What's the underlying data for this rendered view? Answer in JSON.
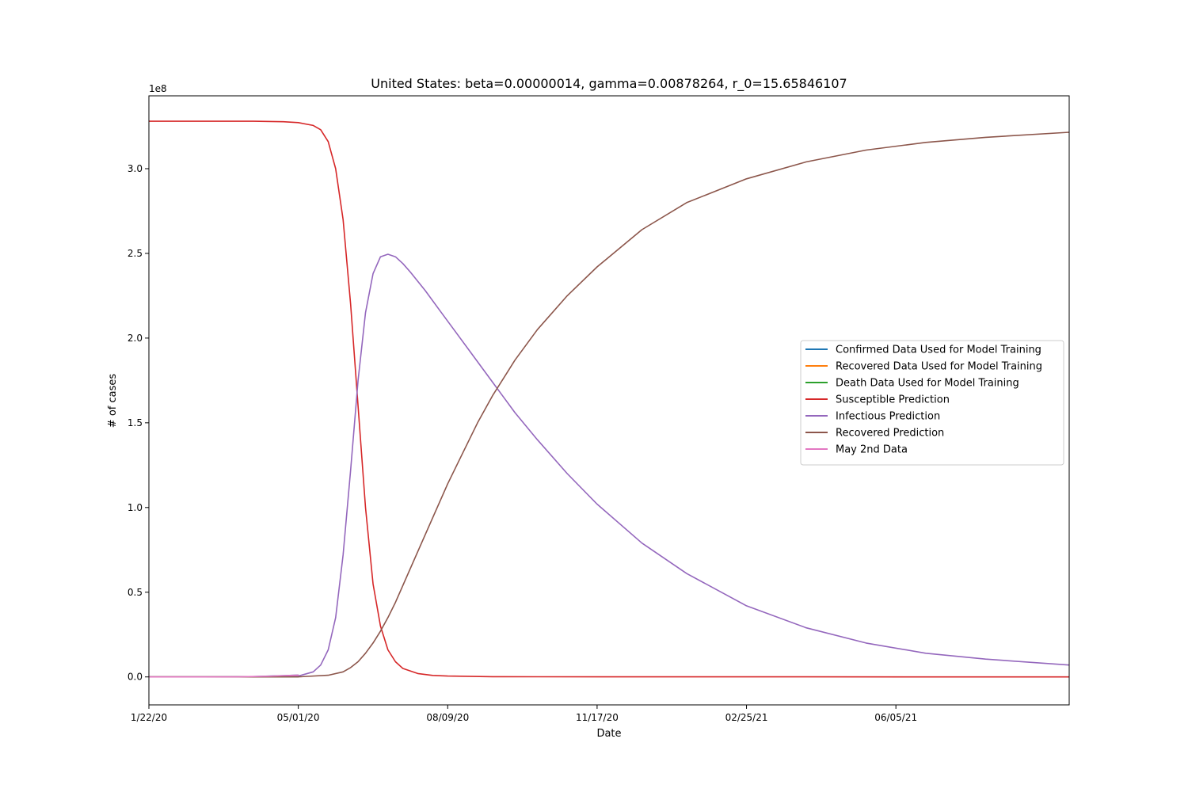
{
  "chart_data": {
    "type": "line",
    "title": "United States: beta=0.00000014, gamma=0.00878264, r_0=15.65846107",
    "xlabel": "Date",
    "ylabel": "# of cases",
    "y_offset_label": "1e8",
    "xlim": [
      "2020-01-22",
      "2021-09-29"
    ],
    "ylim": [
      -0.165,
      3.43
    ],
    "y_unit": "1e8 cases",
    "x_ticks": [
      {
        "value": "2020-01-22",
        "label": "1/22/20"
      },
      {
        "value": "2020-05-01",
        "label": "05/01/20"
      },
      {
        "value": "2020-08-09",
        "label": "08/09/20"
      },
      {
        "value": "2020-11-17",
        "label": "11/17/20"
      },
      {
        "value": "2021-02-25",
        "label": "02/25/21"
      },
      {
        "value": "2021-06-05",
        "label": "06/05/21"
      }
    ],
    "y_ticks": [
      {
        "value": 0.0,
        "label": "0.0"
      },
      {
        "value": 0.5,
        "label": "0.5"
      },
      {
        "value": 1.0,
        "label": "1.0"
      },
      {
        "value": 1.5,
        "label": "1.5"
      },
      {
        "value": 2.0,
        "label": "2.0"
      },
      {
        "value": 2.5,
        "label": "2.5"
      },
      {
        "value": 3.0,
        "label": "3.0"
      }
    ],
    "grid": false,
    "legend_position": "center-right",
    "series": [
      {
        "name": "Confirmed Data Used for Model Training",
        "color": "#1f77b4",
        "x": [
          "2020-01-22",
          "2020-03-01",
          "2020-04-01",
          "2020-05-01"
        ],
        "y": [
          0.0,
          0.0,
          0.002,
          0.011
        ]
      },
      {
        "name": "Recovered Data Used for Model Training",
        "color": "#ff7f0e",
        "x": [
          "2020-01-22",
          "2020-03-01",
          "2020-04-01",
          "2020-05-01"
        ],
        "y": [
          0.0,
          0.0,
          0.0,
          0.002
        ]
      },
      {
        "name": "Death Data Used for Model Training",
        "color": "#2ca02c",
        "x": [
          "2020-01-22",
          "2020-03-01",
          "2020-04-01",
          "2020-05-01"
        ],
        "y": [
          0.0,
          0.0,
          0.0,
          0.0007
        ]
      },
      {
        "name": "Susceptible Prediction",
        "color": "#d62728",
        "x": [
          "2020-01-22",
          "2020-04-01",
          "2020-04-21",
          "2020-05-01",
          "2020-05-11",
          "2020-05-16",
          "2020-05-21",
          "2020-05-26",
          "2020-05-31",
          "2020-06-05",
          "2020-06-10",
          "2020-06-15",
          "2020-06-20",
          "2020-06-25",
          "2020-06-30",
          "2020-07-05",
          "2020-07-10",
          "2020-07-20",
          "2020-07-30",
          "2020-08-09",
          "2020-09-08",
          "2020-10-08",
          "2021-01-06",
          "2021-04-06",
          "2021-07-05",
          "2021-09-29"
        ],
        "y": [
          3.28,
          3.28,
          3.277,
          3.272,
          3.255,
          3.23,
          3.16,
          3.0,
          2.7,
          2.2,
          1.6,
          1.0,
          0.55,
          0.3,
          0.16,
          0.09,
          0.05,
          0.02,
          0.009,
          0.005,
          0.0015,
          0.0008,
          0.0004,
          0.0003,
          0.0002,
          0.0002
        ]
      },
      {
        "name": "Infectious Prediction",
        "color": "#9467bd",
        "x": [
          "2020-01-22",
          "2020-04-01",
          "2020-05-01",
          "2020-05-11",
          "2020-05-16",
          "2020-05-21",
          "2020-05-26",
          "2020-05-31",
          "2020-06-05",
          "2020-06-10",
          "2020-06-15",
          "2020-06-20",
          "2020-06-25",
          "2020-06-30",
          "2020-07-05",
          "2020-07-10",
          "2020-07-15",
          "2020-07-25",
          "2020-08-04",
          "2020-08-14",
          "2020-08-24",
          "2020-09-08",
          "2020-09-23",
          "2020-10-08",
          "2020-10-28",
          "2020-11-17",
          "2020-12-17",
          "2021-01-16",
          "2021-02-25",
          "2021-04-06",
          "2021-05-16",
          "2021-06-25",
          "2021-08-04",
          "2021-09-29"
        ],
        "y": [
          0.0,
          0.0,
          0.005,
          0.03,
          0.07,
          0.16,
          0.35,
          0.72,
          1.22,
          1.75,
          2.15,
          2.38,
          2.48,
          2.495,
          2.48,
          2.44,
          2.39,
          2.28,
          2.16,
          2.04,
          1.92,
          1.74,
          1.56,
          1.4,
          1.2,
          1.02,
          0.79,
          0.61,
          0.42,
          0.29,
          0.2,
          0.14,
          0.105,
          0.07
        ]
      },
      {
        "name": "Recovered Prediction",
        "color": "#8c564b",
        "x": [
          "2020-01-22",
          "2020-04-01",
          "2020-05-01",
          "2020-05-21",
          "2020-05-31",
          "2020-06-05",
          "2020-06-10",
          "2020-06-15",
          "2020-06-20",
          "2020-06-25",
          "2020-06-30",
          "2020-07-05",
          "2020-07-10",
          "2020-07-20",
          "2020-07-30",
          "2020-08-09",
          "2020-08-19",
          "2020-08-29",
          "2020-09-08",
          "2020-09-23",
          "2020-10-08",
          "2020-10-28",
          "2020-11-17",
          "2020-12-17",
          "2021-01-16",
          "2021-02-25",
          "2021-04-06",
          "2021-05-16",
          "2021-06-25",
          "2021-08-04",
          "2021-09-29"
        ],
        "y": [
          0.0,
          0.0,
          0.0005,
          0.01,
          0.03,
          0.055,
          0.09,
          0.14,
          0.2,
          0.27,
          0.35,
          0.44,
          0.54,
          0.74,
          0.94,
          1.14,
          1.32,
          1.5,
          1.66,
          1.87,
          2.05,
          2.25,
          2.42,
          2.64,
          2.8,
          2.94,
          3.04,
          3.11,
          3.155,
          3.185,
          3.215
        ]
      },
      {
        "name": "May 2nd Data",
        "color": "#e377c2",
        "x": [
          "2020-01-22",
          "2020-02-21",
          "2020-03-22",
          "2020-04-11",
          "2020-05-01"
        ],
        "y": [
          0.0,
          0.0,
          0.0005,
          0.004,
          0.011
        ]
      }
    ]
  }
}
